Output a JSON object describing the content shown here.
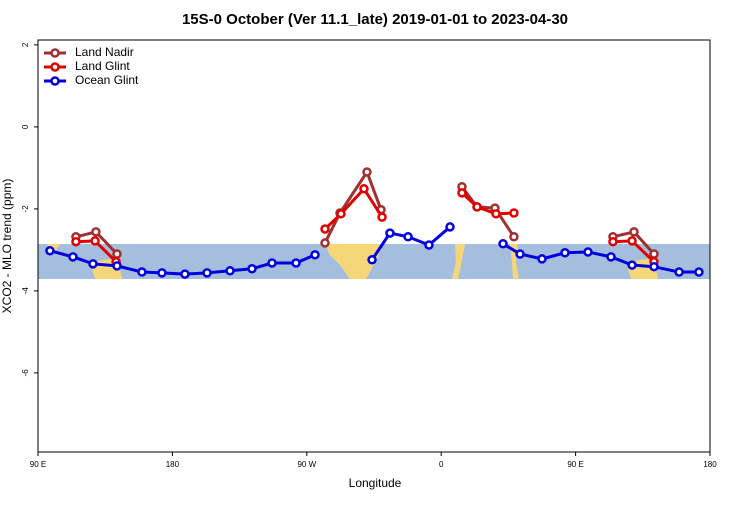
{
  "chart_data": {
    "type": "line",
    "title": "15S-0 October (Ver 11.1_late)   2019-01-01 to 2023-04-30",
    "xlabel": "Longitude",
    "ylabel": "XCO2 - MLO trend (ppm)",
    "xlim": [
      90,
      540
    ],
    "ylim": [
      -7.93,
      2.12
    ],
    "xticks": [
      {
        "value": 90,
        "label": "90 E"
      },
      {
        "value": 180,
        "label": "180"
      },
      {
        "value": 270,
        "label": "90 W"
      },
      {
        "value": 360,
        "label": "0"
      },
      {
        "value": 450,
        "label": "90 E"
      },
      {
        "value": 540,
        "label": "180"
      }
    ],
    "yticks": [
      -6,
      -4,
      -2,
      0,
      2
    ],
    "legend": "top-left",
    "series": [
      {
        "name": "Land Nadir",
        "color": "#a03030",
        "x": [
          115.4,
          128.8,
          142.9,
          null,
          282.2,
          292.2,
          310.3,
          319.7,
          null,
          373.9,
          384.0,
          396.0,
          408.7,
          null,
          475.0,
          489.1,
          502.5
        ],
        "values": [
          -2.68,
          -2.56,
          -3.1,
          null,
          -2.83,
          -2.1,
          -1.1,
          -2.02,
          null,
          -1.46,
          -1.95,
          -1.98,
          -2.68,
          null,
          -2.68,
          -2.56,
          -3.1
        ]
      },
      {
        "name": "Land Glint",
        "color": "#e00000",
        "x": [
          115.4,
          128.2,
          142.3,
          null,
          282.2,
          292.9,
          308.3,
          320.4,
          null,
          373.9,
          384.0,
          396.7,
          408.7,
          null,
          475.0,
          487.8,
          502.5
        ],
        "values": [
          -2.8,
          -2.78,
          -3.29,
          null,
          -2.49,
          -2.12,
          -1.51,
          -2.2,
          null,
          -1.61,
          -1.95,
          -2.12,
          -2.1,
          null,
          -2.8,
          -2.78,
          -3.29
        ]
      },
      {
        "name": "Ocean Glint",
        "color": "#0000e0",
        "x": [
          98.0,
          113.4,
          126.8,
          142.9,
          159.6,
          173.0,
          188.4,
          203.2,
          218.6,
          233.3,
          246.7,
          262.8,
          275.5,
          null,
          313.7,
          325.7,
          337.8,
          351.8,
          365.9,
          null,
          401.4,
          412.8,
          427.5,
          442.9,
          458.3,
          473.7,
          487.8,
          502.5,
          519.3,
          532.6
        ],
        "values": [
          -3.02,
          -3.17,
          -3.34,
          -3.39,
          -3.54,
          -3.56,
          -3.59,
          -3.56,
          -3.51,
          -3.46,
          -3.32,
          -3.32,
          -3.12,
          null,
          -3.24,
          -2.59,
          -2.68,
          -2.88,
          -2.44,
          null,
          -2.85,
          -3.1,
          -3.22,
          -3.07,
          -3.05,
          -3.17,
          -3.37,
          -3.41,
          -3.54,
          -3.54
        ]
      }
    ]
  }
}
